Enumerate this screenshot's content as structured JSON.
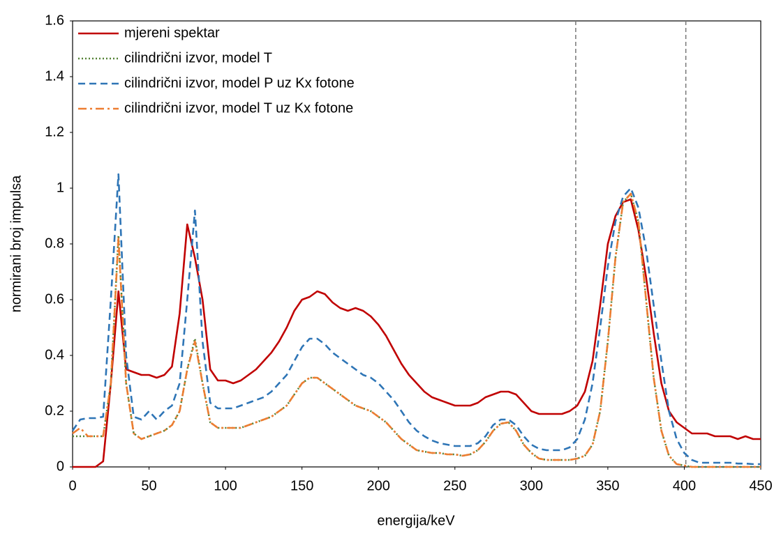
{
  "chart_data": {
    "type": "line",
    "x_label": "energija/keV",
    "y_label": "normirani broj impulsa",
    "x": [
      0,
      5,
      10,
      15,
      20,
      25,
      30,
      35,
      40,
      45,
      50,
      55,
      60,
      65,
      70,
      75,
      80,
      85,
      90,
      95,
      100,
      105,
      110,
      115,
      120,
      125,
      130,
      135,
      140,
      145,
      150,
      155,
      160,
      165,
      170,
      175,
      180,
      185,
      190,
      195,
      200,
      205,
      210,
      215,
      220,
      225,
      230,
      235,
      240,
      245,
      250,
      255,
      260,
      265,
      270,
      275,
      280,
      285,
      290,
      295,
      300,
      305,
      310,
      315,
      320,
      325,
      330,
      335,
      340,
      345,
      350,
      355,
      360,
      365,
      370,
      375,
      380,
      385,
      390,
      395,
      400,
      405,
      410,
      415,
      420,
      425,
      430,
      435,
      440,
      445,
      450
    ],
    "series": [
      {
        "name": "mjereni spektar",
        "color": "#c00000",
        "style": "solid",
        "values": [
          0,
          0,
          0,
          0,
          0.02,
          0.3,
          0.63,
          0.35,
          0.34,
          0.33,
          0.33,
          0.32,
          0.33,
          0.36,
          0.55,
          0.87,
          0.75,
          0.6,
          0.35,
          0.31,
          0.31,
          0.3,
          0.31,
          0.33,
          0.35,
          0.38,
          0.41,
          0.45,
          0.5,
          0.56,
          0.6,
          0.61,
          0.63,
          0.62,
          0.59,
          0.57,
          0.56,
          0.57,
          0.56,
          0.54,
          0.51,
          0.47,
          0.42,
          0.37,
          0.33,
          0.3,
          0.27,
          0.25,
          0.24,
          0.23,
          0.22,
          0.22,
          0.22,
          0.23,
          0.25,
          0.26,
          0.27,
          0.27,
          0.26,
          0.23,
          0.2,
          0.19,
          0.19,
          0.19,
          0.19,
          0.2,
          0.22,
          0.27,
          0.38,
          0.58,
          0.8,
          0.9,
          0.95,
          0.96,
          0.85,
          0.68,
          0.48,
          0.3,
          0.2,
          0.16,
          0.14,
          0.12,
          0.12,
          0.12,
          0.11,
          0.11,
          0.11,
          0.1,
          0.11,
          0.1,
          0.1
        ]
      },
      {
        "name": "cilindrični izvor, model T",
        "color": "#548235",
        "style": "dotted",
        "values": [
          0.11,
          0.11,
          0.11,
          0.11,
          0.11,
          0.3,
          0.83,
          0.3,
          0.12,
          0.1,
          0.11,
          0.12,
          0.13,
          0.15,
          0.2,
          0.35,
          0.46,
          0.3,
          0.16,
          0.14,
          0.14,
          0.14,
          0.14,
          0.15,
          0.16,
          0.17,
          0.18,
          0.2,
          0.22,
          0.26,
          0.3,
          0.32,
          0.32,
          0.3,
          0.28,
          0.26,
          0.24,
          0.22,
          0.21,
          0.2,
          0.18,
          0.16,
          0.13,
          0.1,
          0.08,
          0.06,
          0.055,
          0.05,
          0.05,
          0.045,
          0.045,
          0.04,
          0.045,
          0.06,
          0.09,
          0.13,
          0.155,
          0.16,
          0.13,
          0.08,
          0.05,
          0.03,
          0.025,
          0.025,
          0.025,
          0.025,
          0.03,
          0.04,
          0.08,
          0.2,
          0.45,
          0.75,
          0.95,
          0.98,
          0.88,
          0.6,
          0.32,
          0.13,
          0.04,
          0.01,
          0.005,
          0,
          0,
          0,
          0,
          0,
          0,
          0,
          0,
          0,
          0
        ]
      },
      {
        "name": "cilindrični izvor, model P uz Kx fotone",
        "color": "#2e75b6",
        "style": "dashed",
        "values": [
          0.13,
          0.17,
          0.175,
          0.175,
          0.18,
          0.6,
          1.05,
          0.4,
          0.18,
          0.17,
          0.2,
          0.17,
          0.2,
          0.22,
          0.3,
          0.6,
          0.92,
          0.45,
          0.23,
          0.21,
          0.21,
          0.21,
          0.22,
          0.23,
          0.24,
          0.25,
          0.27,
          0.3,
          0.33,
          0.38,
          0.43,
          0.46,
          0.46,
          0.44,
          0.41,
          0.39,
          0.37,
          0.35,
          0.33,
          0.32,
          0.3,
          0.27,
          0.24,
          0.2,
          0.16,
          0.13,
          0.11,
          0.095,
          0.085,
          0.08,
          0.075,
          0.075,
          0.075,
          0.085,
          0.11,
          0.15,
          0.17,
          0.17,
          0.15,
          0.11,
          0.08,
          0.065,
          0.06,
          0.06,
          0.06,
          0.07,
          0.1,
          0.17,
          0.3,
          0.5,
          0.72,
          0.88,
          0.97,
          1.0,
          0.93,
          0.78,
          0.58,
          0.38,
          0.2,
          0.1,
          0.05,
          0.025,
          0.015,
          0.015,
          0.015,
          0.015,
          0.015,
          0.012,
          0.012,
          0.01,
          0.01
        ]
      },
      {
        "name": "cilindrični izvor, model T uz Kx fotone",
        "color": "#ed7d31",
        "style": "dashdot",
        "values": [
          0.12,
          0.14,
          0.11,
          0.11,
          0.11,
          0.3,
          0.82,
          0.3,
          0.12,
          0.1,
          0.11,
          0.12,
          0.13,
          0.15,
          0.2,
          0.35,
          0.45,
          0.3,
          0.16,
          0.14,
          0.14,
          0.14,
          0.14,
          0.15,
          0.16,
          0.17,
          0.18,
          0.2,
          0.22,
          0.26,
          0.3,
          0.32,
          0.32,
          0.3,
          0.28,
          0.26,
          0.24,
          0.22,
          0.21,
          0.2,
          0.18,
          0.16,
          0.13,
          0.1,
          0.08,
          0.06,
          0.055,
          0.05,
          0.05,
          0.045,
          0.045,
          0.04,
          0.045,
          0.06,
          0.09,
          0.13,
          0.155,
          0.16,
          0.13,
          0.08,
          0.05,
          0.03,
          0.025,
          0.025,
          0.025,
          0.025,
          0.03,
          0.04,
          0.08,
          0.2,
          0.45,
          0.75,
          0.95,
          0.98,
          0.88,
          0.6,
          0.32,
          0.13,
          0.04,
          0.01,
          0.005,
          0,
          0,
          0,
          0,
          0,
          0,
          0,
          0,
          0,
          0
        ]
      }
    ],
    "reference_lines": [
      329,
      401
    ],
    "xlim": [
      0,
      450
    ],
    "xticks": [
      0,
      50,
      100,
      150,
      200,
      250,
      300,
      350,
      400,
      450
    ],
    "ylim": [
      0,
      1.6
    ],
    "yticks": [
      0,
      0.2,
      0.4,
      0.6,
      0.8,
      1,
      1.2,
      1.4,
      1.6
    ],
    "legend": "upper left"
  }
}
